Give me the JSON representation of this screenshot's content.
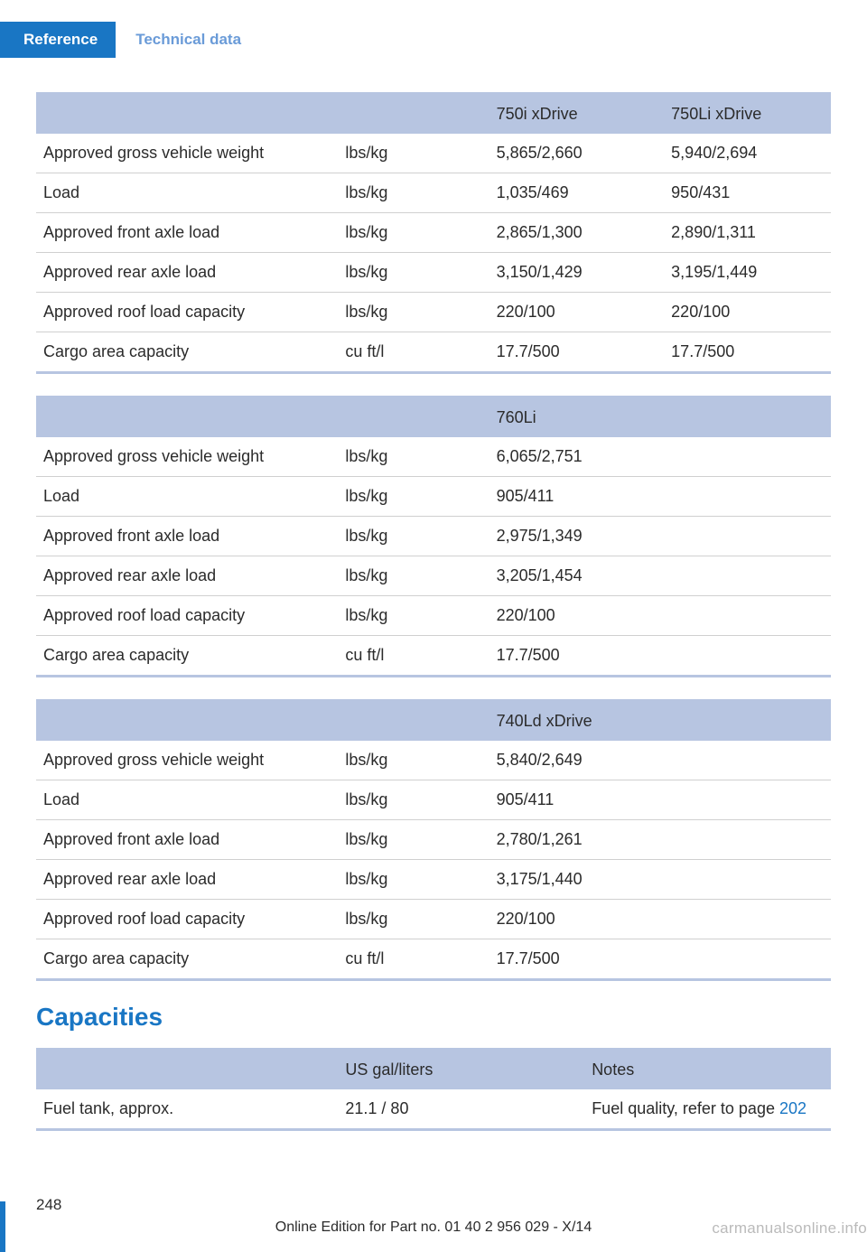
{
  "header": {
    "reference": "Reference",
    "technical": "Technical data"
  },
  "tables": {
    "table1": {
      "header_blank": "",
      "header_unit": "",
      "header_col1": "750i xDrive",
      "header_col2": "750Li xDrive",
      "rows": [
        {
          "param": "Approved gross vehicle weight",
          "unit": "lbs/kg",
          "v1": "5,865/2,660",
          "v2": "5,940/2,694"
        },
        {
          "param": "Load",
          "unit": "lbs/kg",
          "v1": "1,035/469",
          "v2": "950/431"
        },
        {
          "param": "Approved front axle load",
          "unit": "lbs/kg",
          "v1": "2,865/1,300",
          "v2": "2,890/1,311"
        },
        {
          "param": "Approved rear axle load",
          "unit": "lbs/kg",
          "v1": "3,150/1,429",
          "v2": "3,195/1,449"
        },
        {
          "param": "Approved roof load capacity",
          "unit": "lbs/kg",
          "v1": "220/100",
          "v2": "220/100"
        },
        {
          "param": "Cargo area capacity",
          "unit": "cu ft/l",
          "v1": "17.7/500",
          "v2": "17.7/500"
        }
      ]
    },
    "table2": {
      "header_col1": "760Li",
      "rows": [
        {
          "param": "Approved gross vehicle weight",
          "unit": "lbs/kg",
          "v1": "6,065/2,751"
        },
        {
          "param": "Load",
          "unit": "lbs/kg",
          "v1": "905/411"
        },
        {
          "param": "Approved front axle load",
          "unit": "lbs/kg",
          "v1": "2,975/1,349"
        },
        {
          "param": "Approved rear axle load",
          "unit": "lbs/kg",
          "v1": "3,205/1,454"
        },
        {
          "param": "Approved roof load capacity",
          "unit": "lbs/kg",
          "v1": "220/100"
        },
        {
          "param": "Cargo area capacity",
          "unit": "cu ft/l",
          "v1": "17.7/500"
        }
      ]
    },
    "table3": {
      "header_col1": "740Ld xDrive",
      "rows": [
        {
          "param": "Approved gross vehicle weight",
          "unit": "lbs/kg",
          "v1": "5,840/2,649"
        },
        {
          "param": "Load",
          "unit": "lbs/kg",
          "v1": "905/411"
        },
        {
          "param": "Approved front axle load",
          "unit": "lbs/kg",
          "v1": "2,780/1,261"
        },
        {
          "param": "Approved rear axle load",
          "unit": "lbs/kg",
          "v1": "3,175/1,440"
        },
        {
          "param": "Approved roof load capacity",
          "unit": "lbs/kg",
          "v1": "220/100"
        },
        {
          "param": "Cargo area capacity",
          "unit": "cu ft/l",
          "v1": "17.7/500"
        }
      ]
    }
  },
  "capacities": {
    "title": "Capacities",
    "header_col1": "",
    "header_col2": "US gal/liters",
    "header_col3": "Notes",
    "rows": [
      {
        "param": "Fuel tank, approx.",
        "val": "21.1 / 80",
        "note_prefix": "Fuel quality, refer to page ",
        "note_link": "202"
      }
    ]
  },
  "footer": {
    "page_number": "248",
    "edition_text": "Online Edition for Part no. 01 40 2 956 029 - X/14",
    "watermark": "carmanualsonline.info"
  }
}
